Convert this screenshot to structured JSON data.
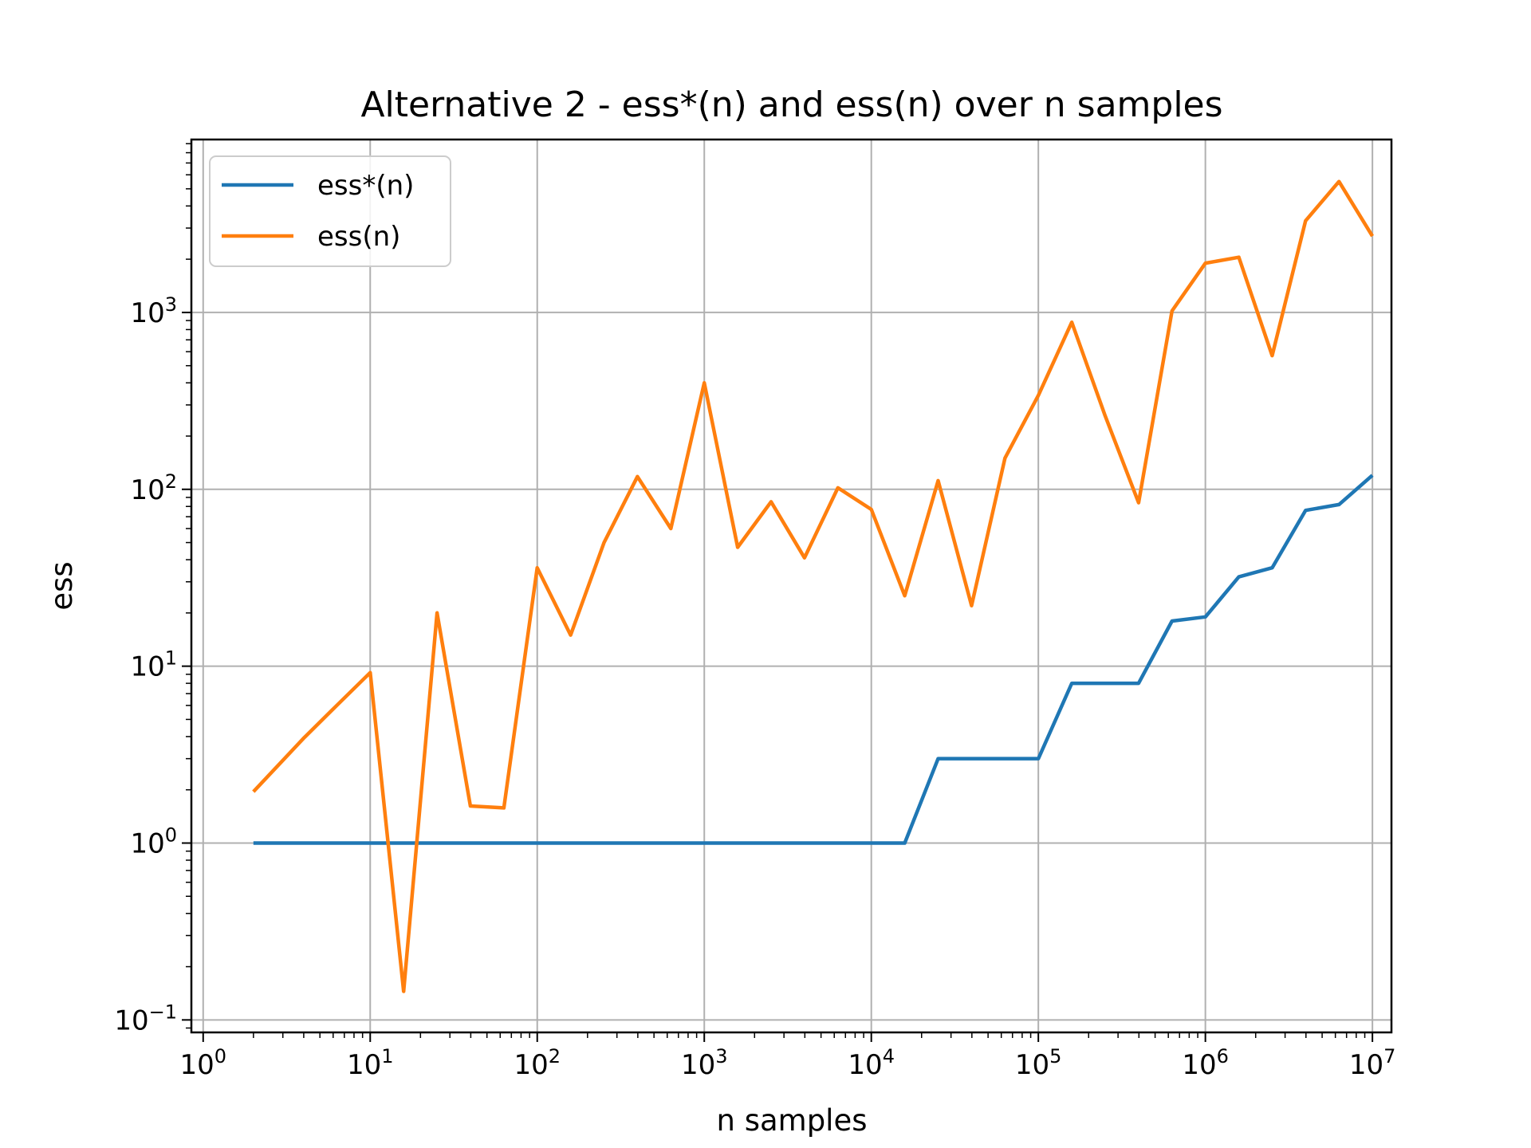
{
  "chart_data": {
    "type": "line",
    "title": "Alternative 2 - ess*(n) and ess(n) over n samples",
    "xlabel": "n samples",
    "ylabel": "ess",
    "xscale": "log",
    "yscale": "log",
    "xlim": [
      0.85,
      13000000
    ],
    "ylim": [
      0.085,
      9500
    ],
    "grid": true,
    "legend_position": "top-left",
    "x_ticks": [
      {
        "base": "10",
        "exp": "0",
        "value": 1
      },
      {
        "base": "10",
        "exp": "1",
        "value": 10
      },
      {
        "base": "10",
        "exp": "2",
        "value": 100
      },
      {
        "base": "10",
        "exp": "3",
        "value": 1000
      },
      {
        "base": "10",
        "exp": "4",
        "value": 10000
      },
      {
        "base": "10",
        "exp": "5",
        "value": 100000
      },
      {
        "base": "10",
        "exp": "6",
        "value": 1000000
      },
      {
        "base": "10",
        "exp": "7",
        "value": 10000000
      }
    ],
    "y_ticks": [
      {
        "base": "10",
        "exp": "−1",
        "value": 0.1
      },
      {
        "base": "10",
        "exp": "0",
        "value": 1
      },
      {
        "base": "10",
        "exp": "1",
        "value": 10
      },
      {
        "base": "10",
        "exp": "2",
        "value": 100
      },
      {
        "base": "10",
        "exp": "3",
        "value": 1000
      }
    ],
    "x": [
      2,
      3.98,
      6.31,
      10,
      15.85,
      25.12,
      39.81,
      63.1,
      100,
      158.5,
      251.2,
      398.1,
      631,
      1000,
      1585,
      2512,
      3981,
      6310,
      10000,
      15850,
      25120,
      39810,
      63100,
      100000,
      158500,
      251200,
      398100,
      631000,
      1000000,
      1585000,
      2512000,
      3981000,
      6310000,
      10000000
    ],
    "series": [
      {
        "name": "ess*(n)",
        "color": "#1f77b4",
        "values": [
          1,
          1,
          1,
          1,
          1,
          1,
          1,
          1,
          1,
          1,
          1,
          1,
          1,
          1,
          1,
          1,
          1,
          1,
          1,
          1,
          3,
          3,
          3,
          3,
          8,
          8,
          8,
          18,
          19,
          32,
          36,
          76,
          82,
          120
        ]
      },
      {
        "name": "ess(n)",
        "color": "#ff7f0e",
        "values": [
          1.95,
          3.9,
          6,
          9.2,
          0.145,
          20,
          1.62,
          1.58,
          36,
          15,
          50,
          118,
          60,
          400,
          47,
          85,
          41,
          102,
          77,
          25,
          112,
          22,
          150,
          340,
          880,
          260,
          84,
          1020,
          1900,
          2050,
          570,
          3300,
          5500,
          2700
        ]
      }
    ]
  }
}
